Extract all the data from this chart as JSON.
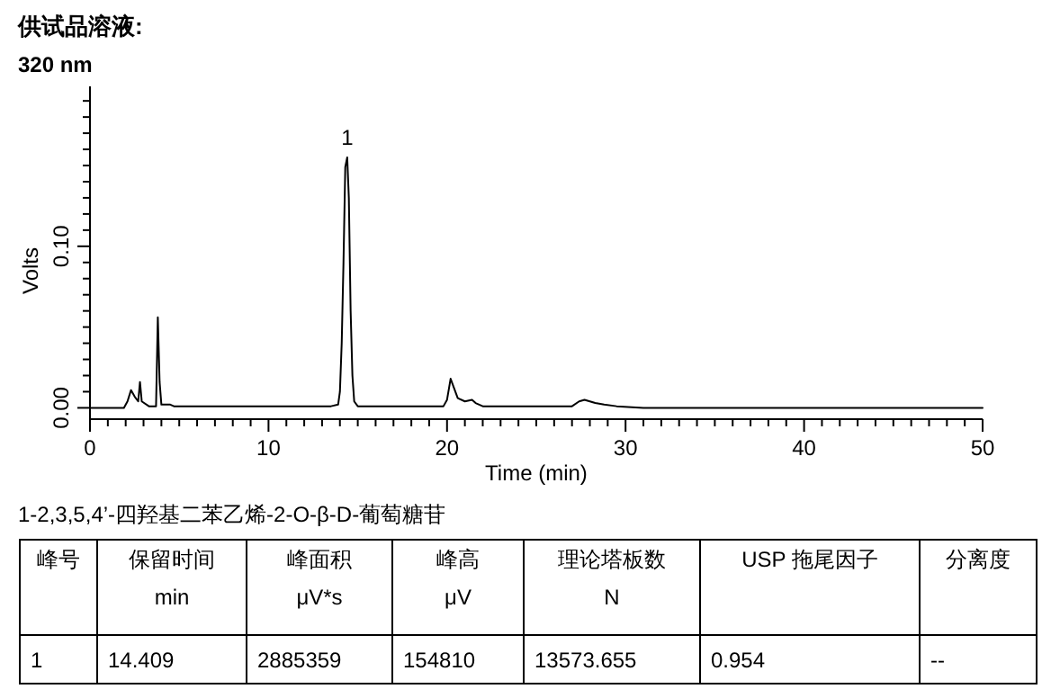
{
  "chart_data": {
    "type": "line",
    "title": "供试品溶液:",
    "subtitle": "320 nm",
    "xlabel": "Time (min)",
    "ylabel": "Volts",
    "xlim": [
      0,
      50
    ],
    "ylim": [
      -0.007,
      0.199
    ],
    "xticks": [
      0,
      {
        "value": 1,
        "label": null
      },
      {
        "value": 2,
        "label": null
      },
      {
        "value": 3,
        "label": null
      },
      {
        "value": 4,
        "label": null
      },
      {
        "value": 5,
        "label": null
      },
      {
        "value": 6,
        "label": null
      },
      {
        "value": 7,
        "label": null
      },
      {
        "value": 8,
        "label": null
      },
      {
        "value": 9,
        "label": null
      },
      10,
      {
        "value": 11,
        "label": null
      },
      {
        "value": 12,
        "label": null
      },
      {
        "value": 13,
        "label": null
      },
      {
        "value": 14,
        "label": null
      },
      {
        "value": 15,
        "label": null
      },
      {
        "value": 16,
        "label": null
      },
      {
        "value": 17,
        "label": null
      },
      {
        "value": 18,
        "label": null
      },
      {
        "value": 19,
        "label": null
      },
      20,
      {
        "value": 21,
        "label": null
      },
      {
        "value": 22,
        "label": null
      },
      {
        "value": 23,
        "label": null
      },
      {
        "value": 24,
        "label": null
      },
      {
        "value": 25,
        "label": null
      },
      {
        "value": 26,
        "label": null
      },
      {
        "value": 27,
        "label": null
      },
      {
        "value": 28,
        "label": null
      },
      {
        "value": 29,
        "label": null
      },
      30,
      {
        "value": 31,
        "label": null
      },
      {
        "value": 32,
        "label": null
      },
      {
        "value": 33,
        "label": null
      },
      {
        "value": 34,
        "label": null
      },
      {
        "value": 35,
        "label": null
      },
      {
        "value": 36,
        "label": null
      },
      {
        "value": 37,
        "label": null
      },
      {
        "value": 38,
        "label": null
      },
      {
        "value": 39,
        "label": null
      },
      40,
      {
        "value": 41,
        "label": null
      },
      {
        "value": 42,
        "label": null
      },
      {
        "value": 43,
        "label": null
      },
      {
        "value": 44,
        "label": null
      },
      {
        "value": 45,
        "label": null
      },
      {
        "value": 46,
        "label": null
      },
      {
        "value": 47,
        "label": null
      },
      {
        "value": 48,
        "label": null
      },
      {
        "value": 49,
        "label": null
      },
      50
    ],
    "yticks": [
      {
        "value": 0,
        "label": "0.00"
      },
      {
        "value": 0.01,
        "label": null
      },
      {
        "value": 0.02,
        "label": null
      },
      {
        "value": 0.03,
        "label": null
      },
      {
        "value": 0.04,
        "label": null
      },
      {
        "value": 0.05,
        "label": null
      },
      {
        "value": 0.06,
        "label": null
      },
      {
        "value": 0.07,
        "label": null
      },
      {
        "value": 0.08,
        "label": null
      },
      {
        "value": 0.09,
        "label": null
      },
      {
        "value": 0.1,
        "label": "0.10"
      },
      {
        "value": 0.11,
        "label": null
      },
      {
        "value": 0.12,
        "label": null
      },
      {
        "value": 0.13,
        "label": null
      },
      {
        "value": 0.14,
        "label": null
      },
      {
        "value": 0.15,
        "label": null
      },
      {
        "value": 0.16,
        "label": null
      },
      {
        "value": 0.17,
        "label": null
      },
      {
        "value": 0.18,
        "label": null
      },
      {
        "value": 0.19,
        "label": null
      }
    ],
    "series": [
      {
        "color": "#000000",
        "x": [
          0,
          1.9,
          2.1,
          2.3,
          2.5,
          2.7,
          2.8,
          2.9,
          3.3,
          3.7,
          3.8,
          3.9,
          4.0,
          4.5,
          4.7,
          6.4,
          13.5,
          13.9,
          14.0,
          14.1,
          14.2,
          14.3,
          14.409,
          14.5,
          14.6,
          14.7,
          14.8,
          15.0,
          16.3,
          19.8,
          20.0,
          20.2,
          20.4,
          20.6,
          21.0,
          21.4,
          21.6,
          22.0,
          27.0,
          27.4,
          27.7,
          28.0,
          28.3,
          28.8,
          29.5,
          31.0,
          50
        ],
        "values": [
          0,
          0,
          0.004,
          0.011,
          0.007,
          0.004,
          0.016,
          0.004,
          0.001,
          0.001,
          0.056,
          0.016,
          0.002,
          0.002,
          0.001,
          0.001,
          0.001,
          0.002,
          0.01,
          0.04,
          0.09,
          0.149,
          0.155,
          0.13,
          0.06,
          0.02,
          0.004,
          0.001,
          0.001,
          0.001,
          0.005,
          0.018,
          0.012,
          0.006,
          0.004,
          0.005,
          0.003,
          0.001,
          0.001,
          0.004,
          0.005,
          0.004,
          0.003,
          0.002,
          0.001,
          0,
          0
        ]
      }
    ],
    "annotations": [
      {
        "text": "1",
        "x": 14.409,
        "y": 0.155
      },
      "1-2,3,5,4’-四羟基二苯乙烯-2-O-β-D-葡萄糖苷",
      "峰号",
      "保留时间\nmin",
      "峰面积\nμV*s",
      "峰高\nμV",
      "理论塔板数\nN",
      "USP 拖尾因子",
      "分离度",
      "1",
      "14.409",
      "2885359",
      "154810",
      "13573.655",
      "0.954",
      "--"
    ]
  }
}
